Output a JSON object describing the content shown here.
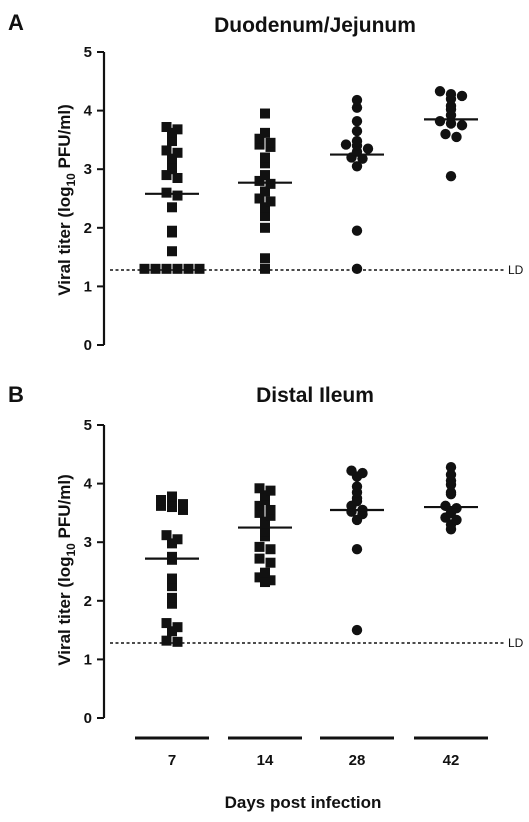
{
  "figure": {
    "xlabel": "Days post infection",
    "groups": [
      "7",
      "14",
      "28",
      "42"
    ]
  },
  "chart_data": [
    {
      "type": "scatter",
      "panel": "A",
      "title": "Duodenum/Jejunum",
      "ylabel_parts": [
        "Viral titer (log",
        "10",
        " PFU/ml)"
      ],
      "ylim": [
        0,
        5
      ],
      "yticks": [
        "0",
        "1",
        "2",
        "3",
        "4",
        "5"
      ],
      "detection_limit": 1.28,
      "detection_limit_label": "LD",
      "categories": [
        "7",
        "14",
        "28",
        "42"
      ],
      "series": [
        {
          "category": "7",
          "marker": "square",
          "mean": 2.58,
          "values": [
            3.72,
            3.68,
            3.62,
            3.48,
            3.32,
            3.28,
            3.18,
            3.05,
            3.0,
            2.9,
            2.85,
            2.6,
            2.55,
            2.35,
            1.95,
            1.92,
            1.6,
            1.3,
            1.3,
            1.3,
            1.3,
            1.3,
            1.3
          ]
        },
        {
          "category": "14",
          "marker": "square",
          "mean": 2.77,
          "values": [
            3.95,
            3.62,
            3.52,
            3.45,
            3.42,
            3.38,
            3.2,
            3.1,
            2.9,
            2.8,
            2.75,
            2.62,
            2.5,
            2.45,
            2.35,
            2.2,
            2.0,
            1.48,
            1.3
          ]
        },
        {
          "category": "28",
          "marker": "circle",
          "mean": 3.25,
          "values": [
            4.18,
            4.05,
            3.82,
            3.65,
            3.48,
            3.42,
            3.4,
            3.35,
            3.3,
            3.2,
            3.18,
            3.05,
            1.95,
            1.3
          ]
        },
        {
          "category": "42",
          "marker": "circle",
          "mean": 3.85,
          "values": [
            4.33,
            4.28,
            4.25,
            4.2,
            4.08,
            4.02,
            3.92,
            3.82,
            3.78,
            3.75,
            3.6,
            3.55,
            2.88
          ]
        }
      ]
    },
    {
      "type": "scatter",
      "panel": "B",
      "title": "Distal Ileum",
      "ylabel_parts": [
        "Viral titer (log",
        "10",
        " PFU/ml)"
      ],
      "ylim": [
        0,
        5
      ],
      "yticks": [
        "0",
        "1",
        "2",
        "3",
        "4",
        "5"
      ],
      "detection_limit": 1.28,
      "detection_limit_label": "LD",
      "categories": [
        "7",
        "14",
        "28",
        "42"
      ],
      "series": [
        {
          "category": "7",
          "marker": "square",
          "mean": 2.72,
          "values": [
            3.78,
            3.72,
            3.7,
            3.65,
            3.62,
            3.6,
            3.55,
            3.12,
            3.05,
            2.98,
            2.75,
            2.7,
            2.38,
            2.25,
            2.05,
            1.95,
            1.62,
            1.55,
            1.48,
            1.32,
            1.3
          ]
        },
        {
          "category": "14",
          "marker": "square",
          "mean": 3.25,
          "values": [
            3.92,
            3.88,
            3.8,
            3.72,
            3.62,
            3.55,
            3.5,
            3.45,
            3.35,
            3.28,
            3.18,
            3.1,
            2.92,
            2.88,
            2.72,
            2.65,
            2.48,
            2.4,
            2.35,
            2.32
          ]
        },
        {
          "category": "28",
          "marker": "circle",
          "mean": 3.55,
          "values": [
            4.22,
            4.18,
            4.12,
            3.95,
            3.85,
            3.75,
            3.7,
            3.62,
            3.55,
            3.52,
            3.48,
            3.38,
            2.88,
            1.5
          ]
        },
        {
          "category": "42",
          "marker": "circle",
          "mean": 3.6,
          "values": [
            4.28,
            4.15,
            4.05,
            3.98,
            3.85,
            3.82,
            3.62,
            3.58,
            3.5,
            3.42,
            3.38,
            3.3,
            3.22
          ]
        }
      ]
    }
  ]
}
